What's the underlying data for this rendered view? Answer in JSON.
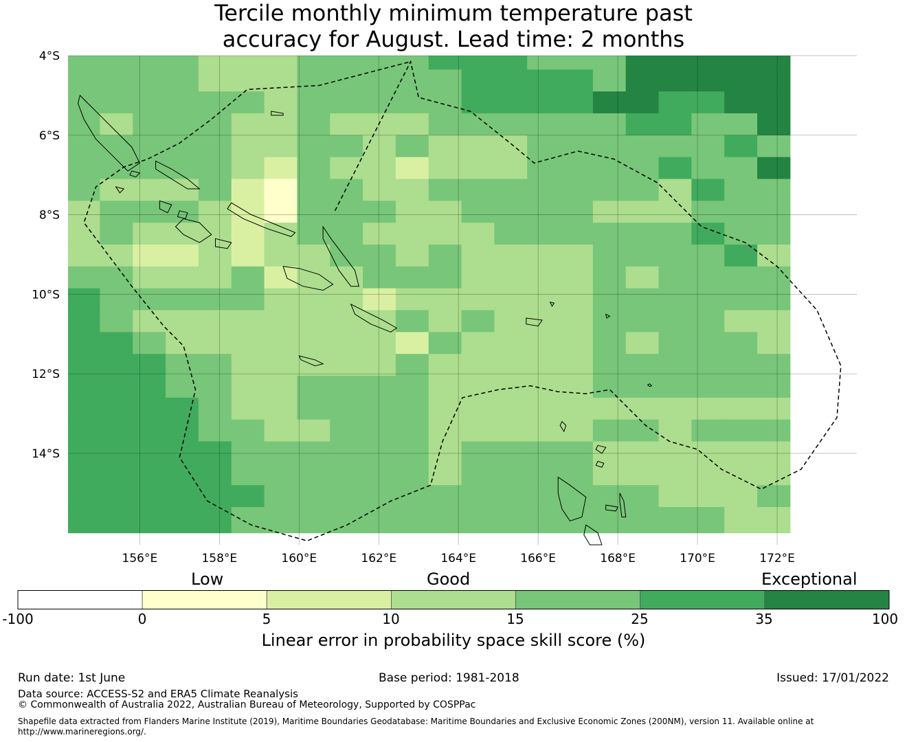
{
  "title_line1": "Tercile monthly minimum temperature past",
  "title_line2": "accuracy for August. Lead time: 2 months",
  "map": {
    "lon_range": [
      154.2,
      174.0
    ],
    "lat_range": [
      -16.3,
      -4.0
    ],
    "lat_ticks": [
      {
        "value": -4,
        "label": "4°S"
      },
      {
        "value": -6,
        "label": "6°S"
      },
      {
        "value": -8,
        "label": "8°S"
      },
      {
        "value": -10,
        "label": "10°S"
      },
      {
        "value": -12,
        "label": "12°S"
      },
      {
        "value": -14,
        "label": "14°S"
      }
    ],
    "lon_ticks": [
      {
        "value": 156,
        "label": "156°E"
      },
      {
        "value": 158,
        "label": "158°E"
      },
      {
        "value": 160,
        "label": "160°E"
      },
      {
        "value": 162,
        "label": "162°E"
      },
      {
        "value": 164,
        "label": "164°E"
      },
      {
        "value": 166,
        "label": "166°E"
      },
      {
        "value": 168,
        "label": "168°E"
      },
      {
        "value": 170,
        "label": "170°E"
      },
      {
        "value": 172,
        "label": "172°E"
      }
    ],
    "grid": "on",
    "boundary_style": "dashed",
    "cell_rows_top_to_bottom": [
      "4444333444455544466666",
      "4444333444445555466666",
      "4444443444445555665566",
      "4344433433344444455446",
      "4444433443433344444454",
      "4444432433233344445446",
      "4333421443344444443544",
      "3444321444334444333444",
      "3433323443333444444544",
      "3322323344343333444453",
      "4433342334443333434444",
      "5444443332333333444444",
      "5433333333434333444433",
      "5543333333243333434443",
      "5554433333433333444444",
      "5554433444433333444444",
      "5555433444433333333333",
      "5555443344433333443444",
      "5555544444434444333333",
      "5555544444434444333333",
      "5555554444444444443334",
      "5555544444444444444433"
    ],
    "row_heights_in_degrees": [
      0.35,
      0.55,
      0.55,
      0.55,
      0.55,
      0.55,
      0.55,
      0.55,
      0.55,
      0.55,
      0.55,
      0.55,
      0.55,
      0.55,
      0.55,
      0.55,
      0.55,
      0.55,
      0.55,
      0.55,
      0.55,
      0.65
    ],
    "first_column_width_in_degrees": 0.8,
    "column_width_in_degrees": 0.825,
    "boundary_points": [
      [
        160.9,
        -7.9
      ],
      [
        162.8,
        -4.15
      ],
      [
        163.0,
        -5.05
      ],
      [
        164.3,
        -5.4
      ],
      [
        165.3,
        -6.2
      ],
      [
        165.9,
        -6.7
      ],
      [
        167.0,
        -6.4
      ],
      [
        167.9,
        -6.6
      ],
      [
        169.0,
        -7.2
      ],
      [
        170.1,
        -8.3
      ],
      [
        171.2,
        -8.7
      ],
      [
        172.0,
        -9.3
      ],
      [
        173.0,
        -10.4
      ],
      [
        173.6,
        -11.8
      ],
      [
        173.5,
        -13.1
      ],
      [
        172.6,
        -14.4
      ],
      [
        171.6,
        -14.9
      ],
      [
        170.6,
        -14.4
      ],
      [
        170.0,
        -13.9
      ],
      [
        169.3,
        -13.7
      ],
      [
        168.7,
        -13.3
      ],
      [
        167.8,
        -12.4
      ],
      [
        167.2,
        -12.5
      ],
      [
        166.5,
        -12.45
      ],
      [
        165.8,
        -12.3
      ],
      [
        165.0,
        -12.4
      ],
      [
        164.1,
        -12.6
      ],
      [
        163.6,
        -13.7
      ],
      [
        163.3,
        -14.8
      ],
      [
        162.3,
        -15.2
      ],
      [
        161.2,
        -15.8
      ],
      [
        160.2,
        -16.2
      ],
      [
        158.8,
        -15.8
      ],
      [
        157.7,
        -15.2
      ],
      [
        157.0,
        -14.1
      ],
      [
        157.4,
        -12.4
      ],
      [
        157.1,
        -11.3
      ],
      [
        156.6,
        -10.8
      ],
      [
        155.8,
        -9.8
      ],
      [
        154.6,
        -8.2
      ],
      [
        154.9,
        -7.3
      ],
      [
        155.6,
        -6.8
      ],
      [
        156.2,
        -6.6
      ],
      [
        157.0,
        -6.2
      ],
      [
        157.8,
        -5.6
      ],
      [
        158.7,
        -4.85
      ],
      [
        160.5,
        -4.75
      ],
      [
        162.8,
        -4.15
      ]
    ],
    "islands": [
      {
        "name": "Bougainville",
        "points": [
          [
            154.5,
            -5.0
          ],
          [
            154.7,
            -5.2
          ],
          [
            155.0,
            -5.5
          ],
          [
            155.4,
            -5.9
          ],
          [
            155.8,
            -6.3
          ],
          [
            156.0,
            -6.7
          ],
          [
            155.7,
            -6.9
          ],
          [
            155.3,
            -6.5
          ],
          [
            154.9,
            -6.1
          ],
          [
            154.6,
            -5.6
          ],
          [
            154.45,
            -5.2
          ]
        ]
      },
      {
        "name": "Choiseul",
        "points": [
          [
            156.4,
            -6.65
          ],
          [
            156.8,
            -6.85
          ],
          [
            157.2,
            -7.1
          ],
          [
            157.5,
            -7.35
          ],
          [
            157.2,
            -7.35
          ],
          [
            156.8,
            -7.1
          ],
          [
            156.4,
            -6.85
          ]
        ]
      },
      {
        "name": "Santa Isabel",
        "points": [
          [
            158.3,
            -7.7
          ],
          [
            158.8,
            -8.0
          ],
          [
            159.3,
            -8.2
          ],
          [
            159.9,
            -8.45
          ],
          [
            159.8,
            -8.55
          ],
          [
            159.2,
            -8.35
          ],
          [
            158.6,
            -8.1
          ],
          [
            158.2,
            -7.85
          ]
        ]
      },
      {
        "name": "New Georgia",
        "points": [
          [
            157.1,
            -8.1
          ],
          [
            157.5,
            -8.2
          ],
          [
            157.8,
            -8.5
          ],
          [
            157.5,
            -8.7
          ],
          [
            157.1,
            -8.5
          ],
          [
            156.9,
            -8.3
          ]
        ]
      },
      {
        "name": "Vangunu",
        "points": [
          [
            157.9,
            -8.6
          ],
          [
            158.3,
            -8.7
          ],
          [
            158.2,
            -8.85
          ],
          [
            157.9,
            -8.8
          ]
        ]
      },
      {
        "name": "Guadalcanal",
        "points": [
          [
            159.6,
            -9.3
          ],
          [
            160.0,
            -9.35
          ],
          [
            160.5,
            -9.5
          ],
          [
            160.85,
            -9.75
          ],
          [
            160.6,
            -9.9
          ],
          [
            160.1,
            -9.8
          ],
          [
            159.7,
            -9.6
          ]
        ]
      },
      {
        "name": "Malaita",
        "points": [
          [
            160.6,
            -8.3
          ],
          [
            160.8,
            -8.6
          ],
          [
            161.1,
            -9.0
          ],
          [
            161.4,
            -9.4
          ],
          [
            161.5,
            -9.8
          ],
          [
            161.3,
            -9.8
          ],
          [
            161.0,
            -9.4
          ],
          [
            160.8,
            -9.0
          ],
          [
            160.6,
            -8.6
          ]
        ]
      },
      {
        "name": "Makira",
        "points": [
          [
            161.3,
            -10.25
          ],
          [
            161.7,
            -10.45
          ],
          [
            162.1,
            -10.65
          ],
          [
            162.45,
            -10.85
          ],
          [
            162.3,
            -10.95
          ],
          [
            161.8,
            -10.75
          ],
          [
            161.4,
            -10.5
          ]
        ]
      },
      {
        "name": "Espiritu Santo",
        "points": [
          [
            166.5,
            -14.6
          ],
          [
            166.8,
            -14.8
          ],
          [
            167.2,
            -15.1
          ],
          [
            167.1,
            -15.6
          ],
          [
            166.8,
            -15.7
          ],
          [
            166.6,
            -15.4
          ],
          [
            166.5,
            -15.0
          ]
        ]
      },
      {
        "name": "Malekula",
        "points": [
          [
            167.2,
            -15.8
          ],
          [
            167.5,
            -16.0
          ],
          [
            167.6,
            -16.3
          ],
          [
            167.3,
            -16.3
          ],
          [
            167.15,
            -16.05
          ]
        ]
      },
      {
        "name": "Maewo",
        "points": [
          [
            168.05,
            -15.0
          ],
          [
            168.15,
            -15.2
          ],
          [
            168.2,
            -15.6
          ],
          [
            168.1,
            -15.6
          ],
          [
            168.05,
            -15.2
          ]
        ]
      },
      {
        "name": "Ambae",
        "points": [
          [
            167.7,
            -15.3
          ],
          [
            168.0,
            -15.35
          ],
          [
            167.95,
            -15.45
          ],
          [
            167.7,
            -15.42
          ]
        ]
      },
      {
        "name": "Ndende",
        "points": [
          [
            165.7,
            -10.6
          ],
          [
            166.1,
            -10.65
          ],
          [
            166.0,
            -10.8
          ],
          [
            165.7,
            -10.75
          ]
        ]
      },
      {
        "name": "Rennell",
        "points": [
          [
            160.0,
            -11.55
          ],
          [
            160.4,
            -11.65
          ],
          [
            160.6,
            -11.75
          ],
          [
            160.4,
            -11.8
          ],
          [
            160.05,
            -11.65
          ]
        ]
      },
      {
        "name": "Ontong Java",
        "points": [
          [
            159.3,
            -5.4
          ],
          [
            159.6,
            -5.45
          ],
          [
            159.6,
            -5.5
          ],
          [
            159.3,
            -5.5
          ]
        ]
      },
      {
        "name": "Torres",
        "points": [
          [
            166.6,
            -13.2
          ],
          [
            166.7,
            -13.3
          ],
          [
            166.65,
            -13.45
          ],
          [
            166.55,
            -13.3
          ]
        ]
      },
      {
        "name": "Banks",
        "points": [
          [
            167.5,
            -13.8
          ],
          [
            167.7,
            -13.85
          ],
          [
            167.6,
            -14.0
          ],
          [
            167.45,
            -13.9
          ]
        ]
      },
      {
        "name": "Gaua",
        "points": [
          [
            167.5,
            -14.2
          ],
          [
            167.65,
            -14.25
          ],
          [
            167.6,
            -14.35
          ],
          [
            167.45,
            -14.3
          ]
        ]
      },
      {
        "name": "Tikopia",
        "points": [
          [
            168.8,
            -12.25
          ],
          [
            168.85,
            -12.3
          ],
          [
            168.8,
            -12.32
          ],
          [
            168.75,
            -12.28
          ]
        ]
      },
      {
        "name": "Reef Islands",
        "points": [
          [
            166.3,
            -10.2
          ],
          [
            166.4,
            -10.22
          ],
          [
            166.35,
            -10.3
          ]
        ]
      },
      {
        "name": "Shortland",
        "points": [
          [
            155.8,
            -6.9
          ],
          [
            156.0,
            -6.95
          ],
          [
            155.9,
            -7.05
          ],
          [
            155.75,
            -7.0
          ]
        ]
      },
      {
        "name": "Treasury",
        "points": [
          [
            155.4,
            -7.3
          ],
          [
            155.6,
            -7.35
          ],
          [
            155.5,
            -7.45
          ]
        ]
      },
      {
        "name": "Vella Lavella",
        "points": [
          [
            156.5,
            -7.65
          ],
          [
            156.8,
            -7.75
          ],
          [
            156.7,
            -7.95
          ],
          [
            156.5,
            -7.85
          ]
        ]
      },
      {
        "name": "Kolombangara",
        "points": [
          [
            157.0,
            -7.9
          ],
          [
            157.2,
            -7.95
          ],
          [
            157.15,
            -8.1
          ],
          [
            156.95,
            -8.05
          ]
        ]
      },
      {
        "name": "Anuta",
        "points": [
          [
            167.7,
            -10.5
          ],
          [
            167.8,
            -10.55
          ],
          [
            167.72,
            -10.6
          ]
        ]
      }
    ]
  },
  "colorbar": {
    "header_low": "Low",
    "header_good": "Good",
    "header_exceptional": "Exceptional",
    "tick_labels": [
      "-100",
      "0",
      "5",
      "10",
      "15",
      "25",
      "35",
      "100"
    ],
    "label": "Linear error in probability space skill score (%)",
    "colors": [
      "#ffffff",
      "#ffffcc",
      "#d9f0a3",
      "#addd8e",
      "#78c679",
      "#41ab5d",
      "#238443"
    ]
  },
  "footer": {
    "run_date": "Run date: 1st June",
    "base_period": "Base period: 1981-2018",
    "issued": "Issued: 17/01/2022",
    "data_source": "Data source: ACCESS-S2 and ERA5 Climate Reanalysis",
    "copyright": "© Commonwealth of Australia 2022, Australian Bureau of Meteorology, Supported by COSPPac",
    "shapefile": "Shapefile data extracted from Flanders Marine Institute (2019), Maritime Boundaries Geodatabase: Maritime Boundaries and Exclusive Economic Zones (200NM), version 11. Available online at http://www.marineregions.org/."
  }
}
